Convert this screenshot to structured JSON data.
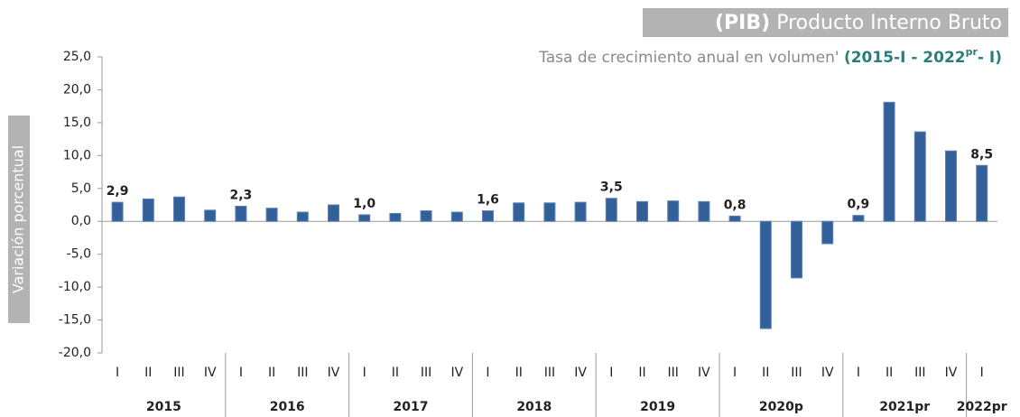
{
  "chart_data": {
    "type": "bar",
    "title_prefix": "(PIB)",
    "title": "Producto Interno Bruto",
    "subtitle": "Tasa de crecimiento anual en volumen'",
    "subtitle_period": [
      "(2015-I - 2022",
      "pr",
      "- I)"
    ],
    "y_label": "Variación porcentual",
    "color": "#34609a",
    "ylim": [
      -20,
      25
    ],
    "yticks": [
      {
        "value": 25,
        "label": "25,0"
      },
      {
        "value": 20,
        "label": "20,0"
      },
      {
        "value": 15,
        "label": "15,0"
      },
      {
        "value": 10,
        "label": "10,0"
      },
      {
        "value": 5,
        "label": "5,0"
      },
      {
        "value": 0,
        "label": "0,0"
      },
      {
        "value": -5,
        "label": "-5,0"
      },
      {
        "value": -10,
        "label": "-10,0"
      },
      {
        "value": -15,
        "label": "-15,0"
      },
      {
        "value": -20,
        "label": "-20,0"
      }
    ],
    "groups": [
      {
        "name": "2015",
        "categories": [
          "I",
          "II",
          "III",
          "IV"
        ],
        "values": [
          2.9,
          3.4,
          3.7,
          1.7
        ],
        "value_labels": [
          "2,9",
          null,
          null,
          null
        ]
      },
      {
        "name": "2016",
        "categories": [
          "I",
          "II",
          "III",
          "IV"
        ],
        "values": [
          2.3,
          2.0,
          1.4,
          2.5
        ],
        "value_labels": [
          "2,3",
          null,
          null,
          null
        ]
      },
      {
        "name": "2017",
        "categories": [
          "I",
          "II",
          "III",
          "IV"
        ],
        "values": [
          1.0,
          1.2,
          1.6,
          1.4
        ],
        "value_labels": [
          "1,0",
          null,
          null,
          null
        ]
      },
      {
        "name": "2018",
        "categories": [
          "I",
          "II",
          "III",
          "IV"
        ],
        "values": [
          1.6,
          2.8,
          2.8,
          2.9
        ],
        "value_labels": [
          "1,6",
          null,
          null,
          null
        ]
      },
      {
        "name": "2019",
        "categories": [
          "I",
          "II",
          "III",
          "IV"
        ],
        "values": [
          3.5,
          3.0,
          3.1,
          3.0
        ],
        "value_labels": [
          "3,5",
          null,
          null,
          null
        ]
      },
      {
        "name": "2020p",
        "categories": [
          "I",
          "II",
          "III",
          "IV"
        ],
        "values": [
          0.8,
          -16.3,
          -8.6,
          -3.4
        ],
        "value_labels": [
          "0,8",
          null,
          null,
          null
        ]
      },
      {
        "name": "2021pr",
        "categories": [
          "I",
          "II",
          "III",
          "IV"
        ],
        "values": [
          0.9,
          18.1,
          13.6,
          10.7
        ],
        "value_labels": [
          "0,9",
          null,
          null,
          null
        ]
      },
      {
        "name": "2022pr",
        "categories": [
          "I"
        ],
        "values": [
          8.5
        ],
        "value_labels": [
          "8,5"
        ]
      }
    ]
  }
}
